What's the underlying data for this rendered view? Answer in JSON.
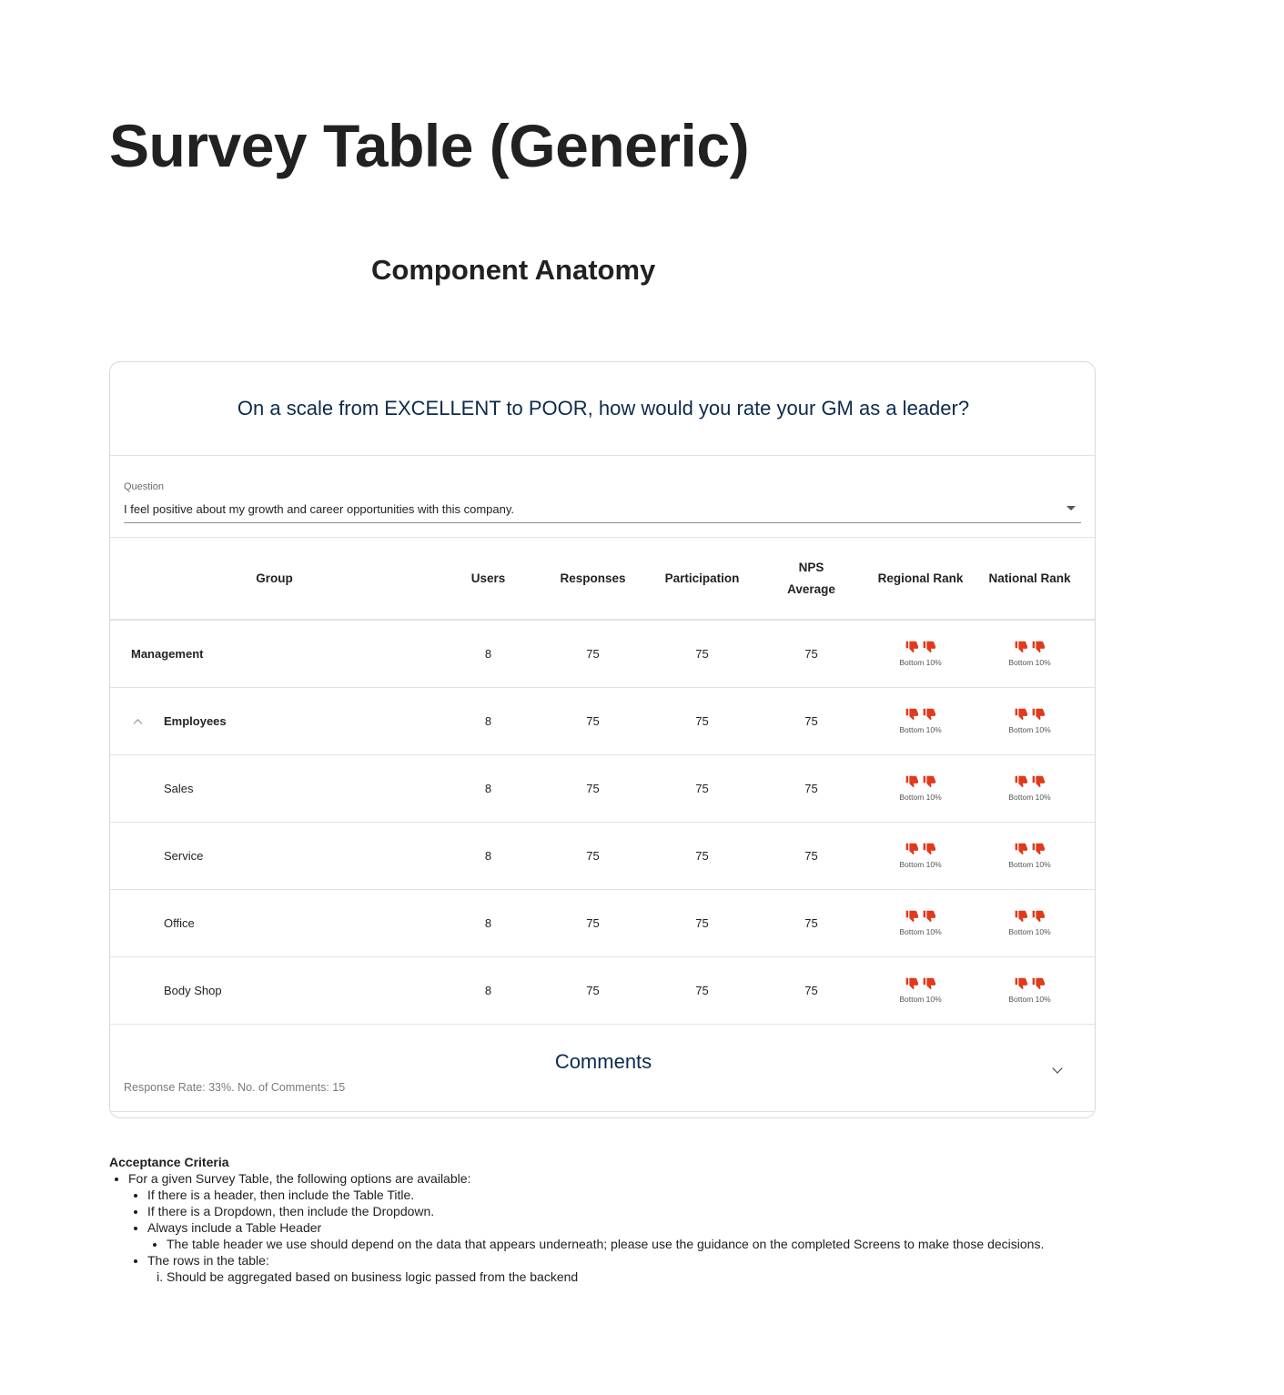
{
  "page": {
    "title": "Survey Table (Generic)",
    "section_title": "Component Anatomy"
  },
  "card": {
    "header": "On a scale from EXCELLENT to POOR, how would you rate your GM as a leader?",
    "dropdown": {
      "label": "Question",
      "value": "I feel positive about my growth and career opportunities with this company."
    },
    "columns": {
      "group": "Group",
      "users": "Users",
      "responses": "Responses",
      "participation": "Participation",
      "nps_line1": "NPS",
      "nps_line2": "Average",
      "regional_rank": "Regional Rank",
      "national_rank": "National Rank"
    },
    "rows": [
      {
        "group": "Management",
        "users": "8",
        "responses": "75",
        "participation": "75",
        "nps": "75",
        "regional": "Bottom 10%",
        "national": "Bottom 10%"
      },
      {
        "group": "Employees",
        "users": "8",
        "responses": "75",
        "participation": "75",
        "nps": "75",
        "regional": "Bottom 10%",
        "national": "Bottom 10%"
      },
      {
        "group": "Sales",
        "users": "8",
        "responses": "75",
        "participation": "75",
        "nps": "75",
        "regional": "Bottom 10%",
        "national": "Bottom 10%"
      },
      {
        "group": "Service",
        "users": "8",
        "responses": "75",
        "participation": "75",
        "nps": "75",
        "regional": "Bottom 10%",
        "national": "Bottom 10%"
      },
      {
        "group": "Office",
        "users": "8",
        "responses": "75",
        "participation": "75",
        "nps": "75",
        "regional": "Bottom 10%",
        "national": "Bottom 10%"
      },
      {
        "group": "Body Shop",
        "users": "8",
        "responses": "75",
        "participation": "75",
        "nps": "75",
        "regional": "Bottom 10%",
        "national": "Bottom 10%"
      }
    ],
    "comments": {
      "title": "Comments",
      "meta": "Response Rate: 33%. No. of Comments: 15"
    }
  },
  "acceptance": {
    "title": "Acceptance Criteria",
    "item1": "For a given Survey Table, the following options are available:",
    "item1_1": "If there is a header, then include the Table Title.",
    "item1_2": "If there is a Dropdown, then include the Dropdown.",
    "item1_3": "Always include a Table Header",
    "item1_3_1": "The table header we use should depend on the data that appears underneath; please use the guidance on the completed Screens to make those decisions.",
    "item1_4": "The rows in the table:",
    "item1_4_1": "Should be aggregated based on business logic passed from the backend"
  },
  "icons": {
    "rank_icon": "thumbs-down-icon",
    "expand_icon": "chevron-up-icon",
    "comments_toggle": "chevron-down-icon",
    "dropdown_caret": "caret-down-icon"
  },
  "colors": {
    "thumb": "#e03a1c",
    "heading_navy": "#0d2a4d"
  }
}
